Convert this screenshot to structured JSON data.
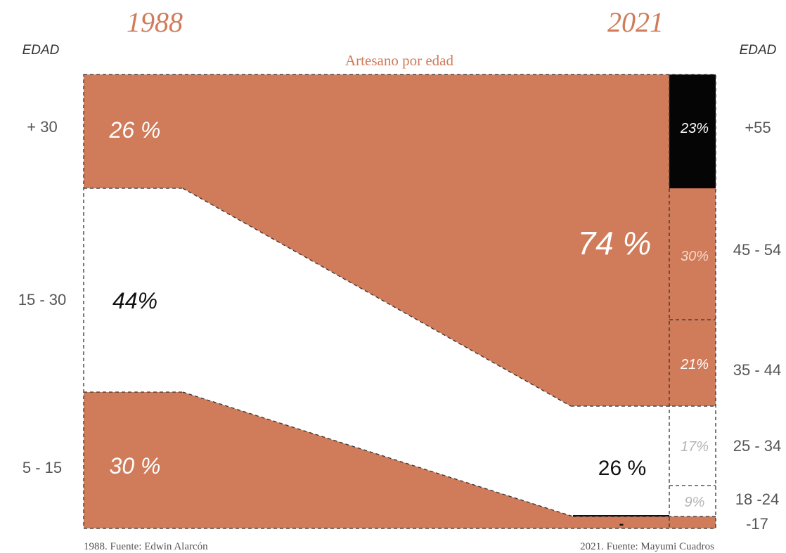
{
  "colors": {
    "terracotta": "#d07b59",
    "black": "#050505",
    "white": "#ffffff",
    "dark_text": "#222222",
    "gray_text": "#b5b5b5",
    "axis_text": "#555555"
  },
  "chart_data": {
    "type": "area",
    "title": "Artesano por edad",
    "years": [
      "1988",
      "2021"
    ],
    "axis_label_left": "EDAD",
    "axis_label_right": "EDAD",
    "left_age_groups": [
      {
        "label": "+ 30",
        "value": 26,
        "display": "26 %"
      },
      {
        "label": "15 - 30",
        "value": 44,
        "display": "44%"
      },
      {
        "label": "5 - 15",
        "value": 30,
        "display": "30 %"
      }
    ],
    "right_totals": [
      {
        "group": "artisans",
        "value": 74,
        "display": "74 %"
      },
      {
        "group": "non-artisans",
        "value": 26,
        "display": "26 %"
      }
    ],
    "right_age_groups": [
      {
        "label": "+55",
        "value": 23,
        "display": "23%"
      },
      {
        "label": "45 - 54",
        "value": 30,
        "display": "30%"
      },
      {
        "label": "35 - 44",
        "value": 21,
        "display": "21%"
      },
      {
        "label": "25 - 34",
        "value": 17,
        "display": "17%"
      },
      {
        "label": "18 -24",
        "value": 9,
        "display": "9%"
      },
      {
        "label": "-17",
        "value": 1,
        "display": "-"
      }
    ],
    "sources": {
      "left": "1988. Fuente: Edwin Alarcón",
      "right": "2021. Fuente: Mayumi Cuadros"
    }
  }
}
